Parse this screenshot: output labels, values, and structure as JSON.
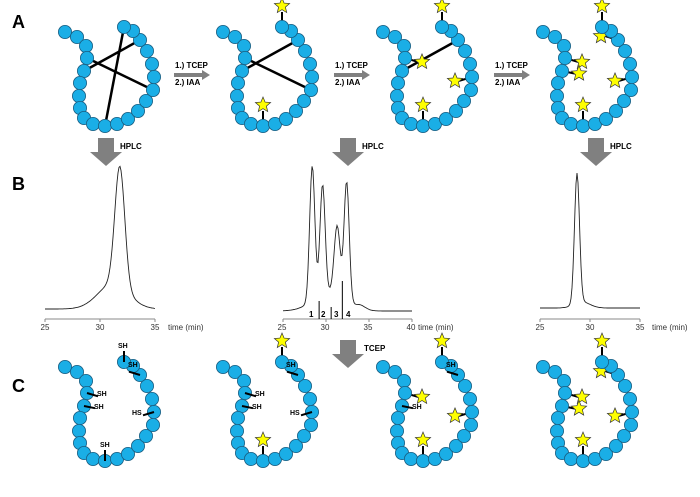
{
  "panels": {
    "a": "A",
    "b": "B",
    "c": "C"
  },
  "steps": {
    "step1": "1.) TCEP",
    "step2": "2.) IAA"
  },
  "arrows": {
    "hplc": "HPLC",
    "tcep": "TCEP"
  },
  "chromatograms": [
    {
      "ticks": [
        "25",
        "30",
        "35"
      ],
      "xlabel": "time (min)"
    },
    {
      "ticks": [
        "25",
        "30",
        "35",
        "40"
      ],
      "xlabel": "time (min)",
      "fractions": [
        "1",
        "2",
        "3",
        "4"
      ]
    },
    {
      "ticks": [
        "25",
        "30",
        "35"
      ],
      "xlabel": "time (min)"
    }
  ],
  "thiol_label": {
    "sh": "SH",
    "hs": "HS"
  },
  "colors": {
    "bead": "#1aaee6",
    "star": "#ffff00",
    "arrow": "#808080"
  }
}
